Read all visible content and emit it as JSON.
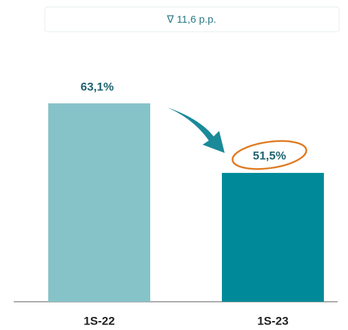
{
  "chart_data": {
    "type": "bar",
    "annotation": "∇ 11,6 p.p.",
    "categories": [
      "1S-22",
      "1S-23"
    ],
    "values": [
      63.1,
      51.5
    ],
    "value_labels": [
      "63,1%",
      "51,5%"
    ],
    "colors": [
      "#86c3c9",
      "#008a99"
    ],
    "ylim": [
      30,
      80
    ]
  }
}
